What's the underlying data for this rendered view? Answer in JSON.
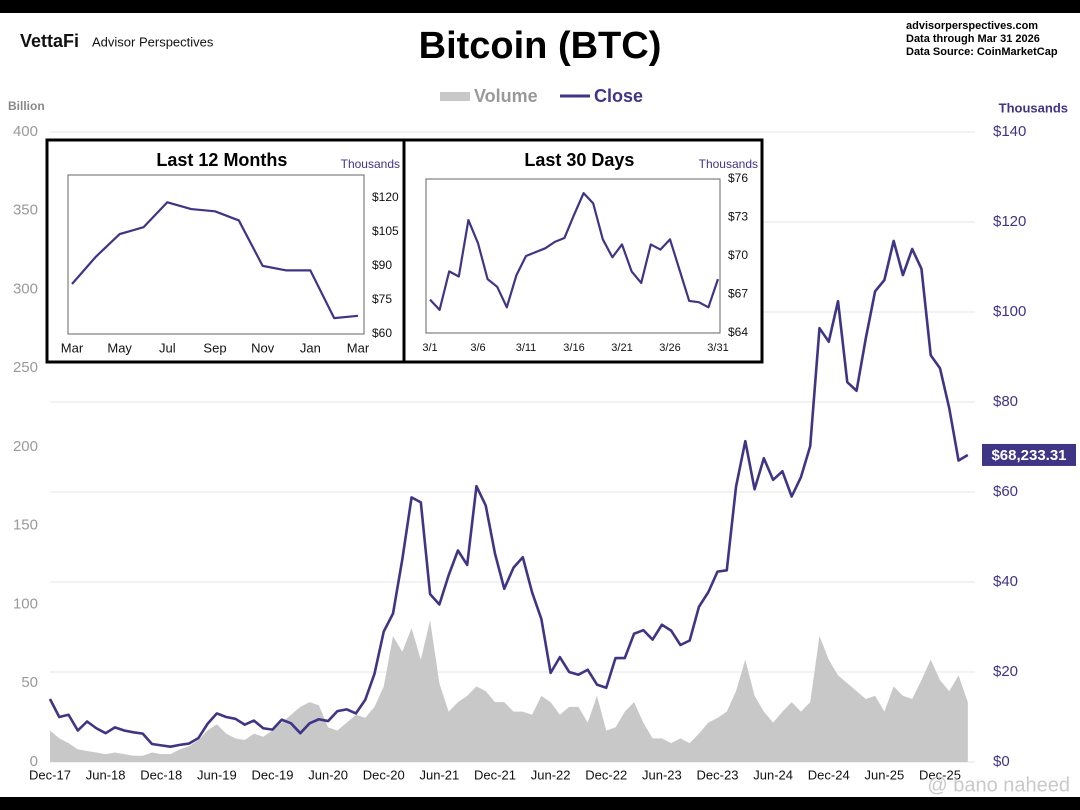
{
  "header": {
    "logo": "VettaFi",
    "brand": "Advisor Perspectives",
    "site": "advisorperspectives.com",
    "through": "Data through Mar 31 2026",
    "source": "Data Source: CoinMarketCap"
  },
  "watermark": "@ bano naheed",
  "chart_data": [
    {
      "type": "line",
      "title": "Bitcoin (BTC)",
      "y_label": "Billion",
      "y2_label": "Thousands",
      "x": [
        "Dec-17",
        null,
        null,
        null,
        null,
        null,
        "Jun-18",
        null,
        null,
        null,
        null,
        null,
        "Dec-18",
        null,
        null,
        null,
        null,
        null,
        "Jun-19",
        null,
        null,
        null,
        null,
        null,
        "Dec-19",
        null,
        null,
        null,
        null,
        null,
        "Jun-20",
        null,
        null,
        null,
        null,
        null,
        "Dec-20",
        null,
        null,
        null,
        null,
        null,
        "Jun-21",
        null,
        null,
        null,
        null,
        null,
        "Dec-21",
        null,
        null,
        null,
        null,
        null,
        "Jun-22",
        null,
        null,
        null,
        null,
        null,
        "Dec-22",
        null,
        null,
        null,
        null,
        null,
        "Jun-23",
        null,
        null,
        null,
        null,
        null,
        "Dec-23",
        null,
        null,
        null,
        null,
        null,
        "Jun-24",
        null,
        null,
        null,
        null,
        null,
        "Dec-24",
        null,
        null,
        null,
        null,
        null,
        "Jun-25",
        null,
        null,
        null,
        null,
        null,
        "Dec-25",
        null,
        null,
        null
      ],
      "series": [
        {
          "name": "Volume",
          "type": "area",
          "axis": "y",
          "color": "#c8c8c8",
          "values": [
            20,
            15,
            12,
            8,
            7,
            6,
            5,
            6,
            5,
            4,
            4,
            6,
            5,
            5,
            8,
            10,
            14,
            20,
            24,
            18,
            15,
            14,
            18,
            16,
            20,
            25,
            30,
            35,
            38,
            36,
            22,
            20,
            25,
            30,
            28,
            35,
            48,
            80,
            70,
            85,
            65,
            90,
            50,
            32,
            38,
            42,
            48,
            45,
            38,
            38,
            32,
            32,
            30,
            42,
            38,
            30,
            35,
            35,
            25,
            42,
            20,
            22,
            32,
            38,
            25,
            15,
            15,
            12,
            15,
            12,
            18,
            25,
            28,
            32,
            45,
            65,
            42,
            32,
            25,
            32,
            38,
            32,
            38,
            80,
            65,
            55,
            50,
            45,
            40,
            42,
            32,
            48,
            42,
            40,
            52,
            65,
            52,
            45,
            55,
            38
          ]
        },
        {
          "name": "Close",
          "type": "line",
          "axis": "y2",
          "color": "#3f3585",
          "values": [
            14,
            10,
            10.5,
            7,
            9,
            7.5,
            6.4,
            7.7,
            7,
            6.6,
            6.3,
            4,
            3.7,
            3.4,
            3.8,
            4.1,
            5.3,
            8.5,
            10.8,
            10,
            9.6,
            8.3,
            9.2,
            7.5,
            7.2,
            9.4,
            8.6,
            6.4,
            8.6,
            9.5,
            9.1,
            11.3,
            11.7,
            10.8,
            13.8,
            19.6,
            29,
            33,
            45,
            58.8,
            57.7,
            37.3,
            35,
            41.5,
            47,
            43.8,
            61.3,
            57,
            46.3,
            38.5,
            43.2,
            45.5,
            37.7,
            31.8,
            19.8,
            23.3,
            20,
            19.4,
            20.5,
            17.2,
            16.5,
            23.1,
            23.1,
            28.5,
            29.3,
            27.2,
            30.5,
            29.2,
            26,
            27,
            34.5,
            37.7,
            42.3,
            42.6,
            61.2,
            71.3,
            60.6,
            67.5,
            62.7,
            64.6,
            59,
            63.3,
            70.2,
            96.4,
            93.4,
            102.4,
            84.4,
            82.5,
            94.2,
            104.6,
            107.1,
            115.8,
            108.2,
            114,
            109.6,
            90.4,
            87.5,
            78.6,
            67,
            68.23331
          ]
        }
      ],
      "annotations": [
        {
          "value": 68.23331,
          "label": "$68,233.31"
        }
      ],
      "ylim": [
        0,
        400
      ],
      "yticks": [
        0,
        50,
        100,
        150,
        200,
        250,
        300,
        350,
        400
      ],
      "y2lim": [
        0,
        140
      ],
      "y2ticks": [
        {
          "value": 0,
          "label": "$0"
        },
        {
          "value": 20,
          "label": "$20"
        },
        {
          "value": 40,
          "label": "$40"
        },
        {
          "value": 60,
          "label": "$60"
        },
        {
          "value": 80,
          "label": "$80"
        },
        {
          "value": 100,
          "label": "$100"
        },
        {
          "value": 120,
          "label": "$120"
        },
        {
          "value": 140,
          "label": "$140"
        }
      ],
      "grid": true
    },
    {
      "type": "line",
      "title": "Last 12 Months",
      "y_label": "Thousands",
      "color": "#3f3585",
      "categories": [
        "Mar",
        null,
        "May",
        null,
        "Jul",
        null,
        "Sep",
        null,
        "Nov",
        null,
        "Jan",
        null,
        "Mar"
      ],
      "values": [
        82,
        94,
        104,
        107,
        118,
        115,
        114,
        110,
        90,
        88,
        88,
        67,
        68
      ],
      "ylim": [
        60,
        130
      ],
      "yticks": [
        {
          "value": 60,
          "label": "$60"
        },
        {
          "value": 75,
          "label": "$75"
        },
        {
          "value": 90,
          "label": "$90"
        },
        {
          "value": 105,
          "label": "$105"
        },
        {
          "value": 120,
          "label": "$120"
        }
      ]
    },
    {
      "type": "line",
      "title": "Last 30 Days",
      "y_label": "Thousands",
      "color": "#3f3585",
      "categories": [
        "3/1",
        null,
        null,
        null,
        null,
        "3/6",
        null,
        null,
        null,
        null,
        "3/11",
        null,
        null,
        null,
        null,
        "3/16",
        null,
        null,
        null,
        null,
        "3/21",
        null,
        null,
        null,
        null,
        "3/26",
        null,
        null,
        null,
        null,
        "3/31"
      ],
      "values": [
        66.6,
        65.8,
        68.8,
        68.4,
        72.8,
        71,
        68.2,
        67.6,
        66,
        68.5,
        70,
        70.3,
        70.6,
        71.1,
        71.4,
        73.2,
        74.9,
        74.1,
        71.3,
        69.9,
        70.9,
        68.8,
        67.9,
        70.9,
        70.5,
        71.3,
        68.9,
        66.5,
        66.4,
        66,
        68.2
      ],
      "ylim": [
        64,
        76
      ],
      "yticks": [
        {
          "value": 64,
          "label": "$64"
        },
        {
          "value": 67,
          "label": "$67"
        },
        {
          "value": 70,
          "label": "$70"
        },
        {
          "value": 73,
          "label": "$73"
        },
        {
          "value": 76,
          "label": "$76"
        }
      ]
    }
  ]
}
